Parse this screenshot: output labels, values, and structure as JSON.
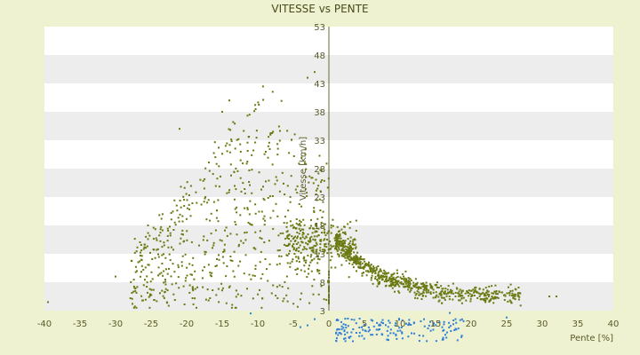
{
  "chart_data": {
    "type": "scatter",
    "title": "VITESSE vs PENTE",
    "xlabel": "Pente [%]",
    "ylabel": "Vitesse [km/h]",
    "xlim": [
      -40,
      40
    ],
    "ylim": [
      3,
      53
    ],
    "x_ticks": [
      "-40",
      "-35",
      "-30",
      "-25",
      "-20",
      "-15",
      "-10",
      "-5",
      "0",
      "5",
      "10",
      "15",
      "20",
      "25",
      "30",
      "35",
      "40"
    ],
    "y_ticks": [
      "3",
      "8",
      "13",
      "18",
      "23",
      "28",
      "33",
      "38",
      "43",
      "48",
      "53"
    ],
    "grid": true,
    "band_color": "#ededed",
    "series_colors": [
      "#6b7a12",
      "#2f7fd6"
    ]
  }
}
